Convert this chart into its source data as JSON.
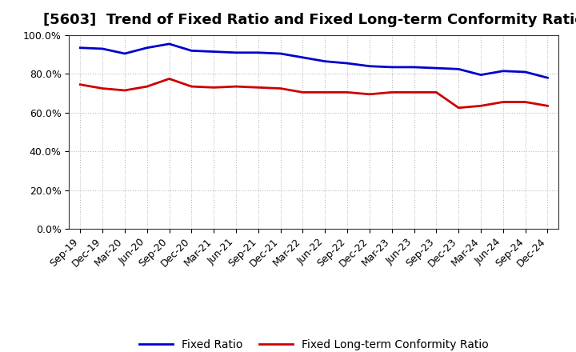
{
  "title": "[5603]  Trend of Fixed Ratio and Fixed Long-term Conformity Ratio",
  "x_labels": [
    "Sep-19",
    "Dec-19",
    "Mar-20",
    "Jun-20",
    "Sep-20",
    "Dec-20",
    "Mar-21",
    "Jun-21",
    "Sep-21",
    "Dec-21",
    "Mar-22",
    "Jun-22",
    "Sep-22",
    "Dec-22",
    "Mar-23",
    "Jun-23",
    "Sep-23",
    "Dec-23",
    "Mar-24",
    "Jun-24",
    "Sep-24",
    "Dec-24"
  ],
  "fixed_ratio": [
    93.5,
    93.0,
    90.5,
    93.5,
    95.5,
    92.0,
    91.5,
    91.0,
    91.0,
    90.5,
    88.5,
    86.5,
    85.5,
    84.0,
    83.5,
    83.5,
    83.0,
    82.5,
    79.5,
    81.5,
    81.0,
    78.0
  ],
  "fixed_lt_conformity": [
    74.5,
    72.5,
    71.5,
    73.5,
    77.5,
    73.5,
    73.0,
    73.5,
    73.0,
    72.5,
    70.5,
    70.5,
    70.5,
    69.5,
    70.5,
    70.5,
    70.5,
    62.5,
    63.5,
    65.5,
    65.5,
    63.5
  ],
  "fixed_ratio_color": "#0000cc",
  "fixed_lt_color": "#cc0000",
  "ylim": [
    0,
    100
  ],
  "yticks": [
    0,
    20,
    40,
    60,
    80,
    100
  ],
  "grid_color": "#bbbbbb",
  "background_color": "#ffffff",
  "legend_fixed_ratio": "Fixed Ratio",
  "legend_fixed_lt": "Fixed Long-term Conformity Ratio",
  "title_fontsize": 13,
  "tick_fontsize": 9,
  "legend_fontsize": 10
}
